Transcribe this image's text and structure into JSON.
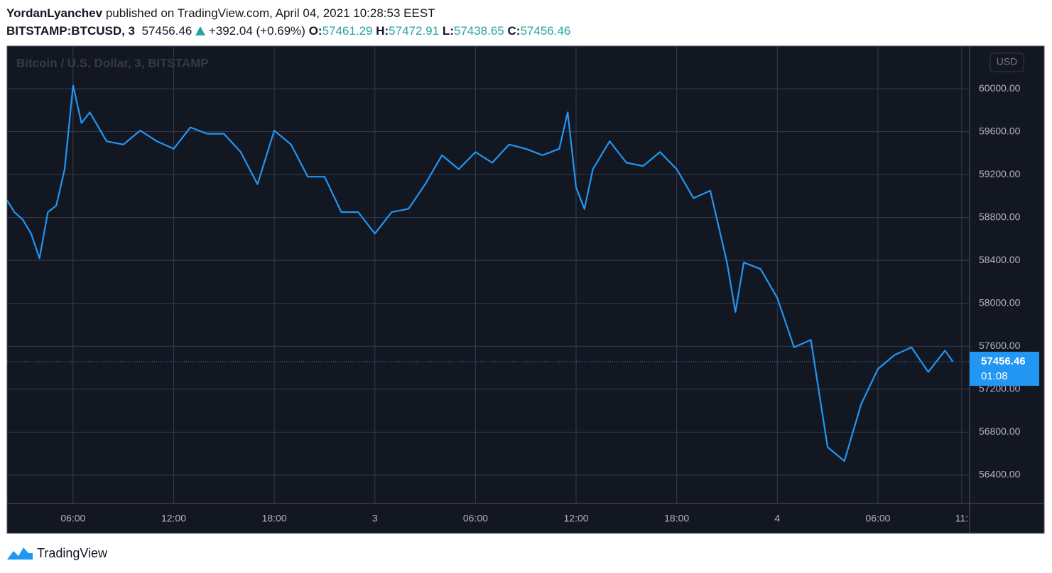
{
  "header": {
    "author": "YordanLyanchev",
    "published": "published on TradingView.com, April 04, 2021 10:28:53 EEST",
    "symbol": "BITSTAMP:BTCUSD, 3",
    "price": "57456.46",
    "change": "+392.04 (+0.69%)",
    "ohlc": [
      {
        "label": "O:",
        "value": "57461.29"
      },
      {
        "label": "H:",
        "value": "57472.91"
      },
      {
        "label": "L:",
        "value": "57438.65"
      },
      {
        "label": "C:",
        "value": "57456.46"
      }
    ]
  },
  "footer": {
    "brand": "TradingView"
  },
  "chart_data": {
    "type": "line",
    "watermark": "Bitcoin / U.S. Dollar, 3, BITSTAMP",
    "currency": "USD",
    "x": [
      "2 02:04",
      "2 02:30",
      "2 03:00",
      "2 03:30",
      "2 04:00",
      "2 04:30",
      "2 05:00",
      "2 05:30",
      "2 06:00",
      "2 06:30",
      "2 07:00",
      "2 08:00",
      "2 09:00",
      "2 10:00",
      "2 11:00",
      "2 12:00",
      "2 13:00",
      "2 14:00",
      "2 15:00",
      "2 16:00",
      "2 17:00",
      "2 18:00",
      "2 19:00",
      "2 20:00",
      "2 21:00",
      "2 22:00",
      "2 23:00",
      "3 00:00",
      "3 01:00",
      "3 02:00",
      "3 03:00",
      "3 04:00",
      "3 05:00",
      "3 06:00",
      "3 07:00",
      "3 08:00",
      "3 09:00",
      "3 10:00",
      "3 11:00",
      "3 11:30",
      "3 12:00",
      "3 12:30",
      "3 13:00",
      "3 14:00",
      "3 15:00",
      "3 16:00",
      "3 17:00",
      "3 18:00",
      "3 19:00",
      "3 20:00",
      "3 21:00",
      "3 21:30",
      "3 22:00",
      "3 23:00",
      "4 00:00",
      "4 01:00",
      "4 02:00",
      "4 02:30",
      "4 03:00",
      "4 04:00",
      "4 05:00",
      "4 06:00",
      "4 07:00",
      "4 08:00",
      "4 09:00",
      "4 10:00",
      "4 10:28"
    ],
    "series": [
      {
        "name": "BTCUSD",
        "color": "#2196f3",
        "values": [
          58960,
          58850,
          58780,
          58650,
          58420,
          58850,
          58910,
          59250,
          60030,
          59680,
          59780,
          59510,
          59480,
          59610,
          59510,
          59440,
          59640,
          59580,
          59580,
          59410,
          59110,
          59610,
          59480,
          59180,
          59180,
          58850,
          58850,
          58650,
          58850,
          58880,
          59110,
          59380,
          59250,
          59410,
          59310,
          59480,
          59440,
          59380,
          59440,
          59780,
          59080,
          58880,
          59250,
          59510,
          59310,
          59280,
          59410,
          59250,
          58980,
          59050,
          58380,
          57920,
          58380,
          58320,
          58050,
          57590,
          57660,
          57160,
          56660,
          56530,
          57060,
          57390,
          57520,
          57590,
          57360,
          57560,
          57456.46
        ]
      }
    ],
    "last_price": 57456.46,
    "last_price_label": "57456.46",
    "countdown": "01:08",
    "xlim": [
      "2 02:04",
      "4 11:28"
    ],
    "xticks": [
      {
        "value": "2 06:00",
        "label": "06:00"
      },
      {
        "value": "2 12:00",
        "label": "12:00"
      },
      {
        "value": "2 18:00",
        "label": "18:00"
      },
      {
        "value": "3 00:00",
        "label": "3"
      },
      {
        "value": "3 06:00",
        "label": "06:00"
      },
      {
        "value": "3 12:00",
        "label": "12:00"
      },
      {
        "value": "3 18:00",
        "label": "18:00"
      },
      {
        "value": "4 00:00",
        "label": "4"
      },
      {
        "value": "4 06:00",
        "label": "06:00"
      },
      {
        "value": "4 11:00",
        "label": "11:"
      }
    ],
    "ylim": [
      56135,
      60397
    ],
    "yticks": [
      {
        "value": 56400,
        "label": "56400.00"
      },
      {
        "value": 56800,
        "label": "56800.00"
      },
      {
        "value": 57200,
        "label": "57200.00"
      },
      {
        "value": 57600,
        "label": "57600.00"
      },
      {
        "value": 58000,
        "label": "58000.00"
      },
      {
        "value": 58400,
        "label": "58400.00"
      },
      {
        "value": 58800,
        "label": "58800.00"
      },
      {
        "value": 59200,
        "label": "59200.00"
      },
      {
        "value": 59600,
        "label": "59600.00"
      },
      {
        "value": 60000,
        "label": "60000.00"
      }
    ],
    "grid": true
  }
}
